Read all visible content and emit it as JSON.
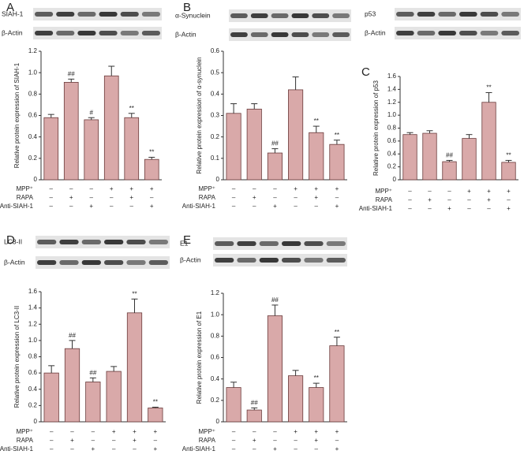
{
  "chart_data": [
    {
      "type": "bar",
      "panel": "A",
      "blot_labels": [
        "SIAH-1",
        "β-Actin"
      ],
      "ylabel": "Relative protein expression of SIAH-1",
      "values": [
        0.58,
        0.91,
        0.56,
        0.97,
        0.58,
        0.19
      ],
      "errors": [
        0.03,
        0.03,
        0.02,
        0.09,
        0.04,
        0.02
      ],
      "value_annotations": [
        null,
        "##",
        "#",
        null,
        "**",
        "**"
      ],
      "color": "#d9a9a9",
      "ylim": [
        0,
        1.2
      ],
      "yticks": [
        0,
        0.2,
        0.4,
        0.6,
        0.8,
        {
          "value": 1,
          "label": "1.0"
        },
        1.2
      ],
      "conditions": [
        {
          "name": "MPP⁺",
          "signs": [
            "–",
            "–",
            "–",
            "+",
            "+",
            "+"
          ]
        },
        {
          "name": "RAPA",
          "signs": [
            "–",
            "+",
            "–",
            "–",
            "+",
            "–"
          ]
        },
        {
          "name": "Anti-SIAH-1",
          "signs": [
            "–",
            "–",
            "+",
            "–",
            "–",
            "+"
          ]
        }
      ]
    },
    {
      "type": "bar",
      "panel": "B",
      "blot_labels": [
        "α-Synuclein",
        "β-Actin"
      ],
      "ylabel": "Relative protein expression of α-synuclein",
      "values": [
        0.31,
        0.33,
        0.125,
        0.42,
        0.22,
        0.165
      ],
      "errors": [
        0.045,
        0.025,
        0.02,
        0.06,
        0.03,
        0.02
      ],
      "value_annotations": [
        null,
        null,
        "##",
        null,
        "**",
        "**"
      ],
      "color": "#d9a9a9",
      "ylim": [
        0,
        0.6
      ],
      "yticks": [
        0,
        0.1,
        0.2,
        0.3,
        0.4,
        0.5,
        0.6
      ],
      "conditions": [
        {
          "name": "MPP⁺",
          "signs": [
            "–",
            "–",
            "–",
            "+",
            "+",
            "+"
          ]
        },
        {
          "name": "RAPA",
          "signs": [
            "–",
            "+",
            "–",
            "–",
            "+",
            "–"
          ]
        },
        {
          "name": "Anti-SIAH-1",
          "signs": [
            "–",
            "–",
            "+",
            "–",
            "–",
            "+"
          ]
        }
      ]
    },
    {
      "type": "bar",
      "panel": "C",
      "blot_labels": [
        "p53",
        "β-Actin"
      ],
      "ylabel": "Relative protein expression of p53",
      "values": [
        0.7,
        0.72,
        0.28,
        0.64,
        1.2,
        0.27
      ],
      "errors": [
        0.03,
        0.04,
        0.02,
        0.06,
        0.15,
        0.03
      ],
      "value_annotations": [
        null,
        null,
        "##",
        null,
        "**",
        "**"
      ],
      "color": "#d9a9a9",
      "ylim": [
        0,
        1.6
      ],
      "yticks": [
        0,
        0.2,
        0.4,
        0.6,
        0.8,
        {
          "value": 1,
          "label": "1.0"
        },
        1.2,
        1.4,
        1.6
      ],
      "conditions": [
        {
          "name": "MPP⁺",
          "signs": [
            "–",
            "–",
            "–",
            "+",
            "+",
            "+"
          ]
        },
        {
          "name": "RAPA",
          "signs": [
            "–",
            "+",
            "–",
            "–",
            "+",
            "–"
          ]
        },
        {
          "name": "Anti-SIAH-1",
          "signs": [
            "–",
            "–",
            "+",
            "–",
            "–",
            "+"
          ]
        }
      ]
    },
    {
      "type": "bar",
      "panel": "D",
      "blot_labels": [
        "LC3-II",
        "β-Actin"
      ],
      "ylabel": "Relative protein expression of LC3-II",
      "values": [
        0.6,
        0.9,
        0.49,
        0.62,
        1.34,
        0.17
      ],
      "errors": [
        0.09,
        0.1,
        0.05,
        0.06,
        0.17,
        0.01
      ],
      "value_annotations": [
        null,
        "##",
        "##",
        null,
        "**",
        "**"
      ],
      "color": "#d9a9a9",
      "ylim": [
        0,
        1.6
      ],
      "yticks": [
        0,
        0.2,
        0.4,
        0.6,
        0.8,
        {
          "value": 1,
          "label": "1.0"
        },
        1.2,
        1.4,
        1.6
      ],
      "conditions": [
        {
          "name": "MPP⁺",
          "signs": [
            "–",
            "–",
            "–",
            "+",
            "+",
            "+"
          ]
        },
        {
          "name": "RAPA",
          "signs": [
            "–",
            "+",
            "–",
            "–",
            "+",
            "–"
          ]
        },
        {
          "name": "Anti-SIAH-1",
          "signs": [
            "–",
            "–",
            "+",
            "–",
            "–",
            "+"
          ]
        }
      ]
    },
    {
      "type": "bar",
      "panel": "E",
      "blot_labels": [
        "E1",
        "β-Actin"
      ],
      "ylabel": "Relative protein expression of E1",
      "values": [
        0.32,
        0.11,
        0.99,
        0.43,
        0.32,
        0.71
      ],
      "errors": [
        0.05,
        0.02,
        0.1,
        0.05,
        0.04,
        0.08
      ],
      "value_annotations": [
        null,
        "##",
        "##",
        null,
        "**",
        "**"
      ],
      "color": "#d9a9a9",
      "ylim": [
        0,
        1.2
      ],
      "yticks": [
        0,
        0.2,
        0.4,
        0.6,
        0.8,
        {
          "value": 1,
          "label": "1.0"
        },
        1.2
      ],
      "conditions": [
        {
          "name": "MPP⁺",
          "signs": [
            "–",
            "–",
            "–",
            "+",
            "+",
            "+"
          ]
        },
        {
          "name": "RAPA",
          "signs": [
            "–",
            "+",
            "–",
            "–",
            "+",
            "–"
          ]
        },
        {
          "name": "Anti-SIAH-1",
          "signs": [
            "–",
            "–",
            "+",
            "–",
            "–",
            "+"
          ]
        }
      ]
    }
  ]
}
